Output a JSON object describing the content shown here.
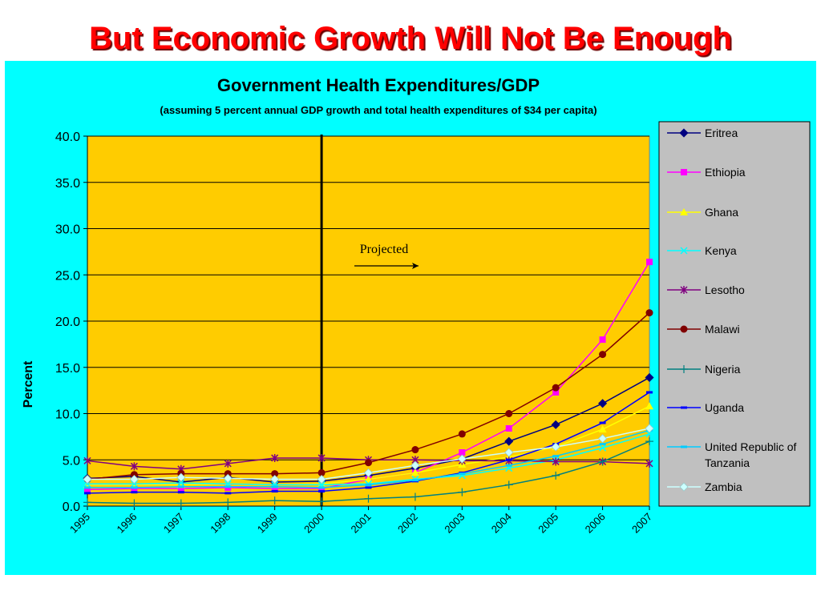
{
  "slide": {
    "title": "But Economic Growth Will Not Be Enough"
  },
  "chart_data": {
    "type": "line",
    "title": "Government Health Expenditures/GDP",
    "subtitle": "(assuming 5 percent annual GDP growth and total health expenditures of $34 per capita)",
    "ylabel": "Percent",
    "xlabel": "",
    "ylim": [
      0,
      40
    ],
    "yticks": [
      "0.0",
      "5.0",
      "10.0",
      "15.0",
      "20.0",
      "25.0",
      "30.0",
      "35.0",
      "40.0"
    ],
    "categories": [
      "1995",
      "1996",
      "1997",
      "1998",
      "1999",
      "2000",
      "2001",
      "2002",
      "2003",
      "2004",
      "2005",
      "2006",
      "2007"
    ],
    "grid": "horizontal",
    "legend_position": "right",
    "plot_background": "#ffcc00",
    "page_background": "#00ffff",
    "divider_at": "2000",
    "annotation": "Projected",
    "series": [
      {
        "name": "Eritrea",
        "color": "#000080",
        "marker": "diamond",
        "values": [
          3.0,
          3.2,
          2.6,
          3.1,
          2.6,
          2.7,
          3.3,
          4.1,
          5.1,
          7.0,
          8.8,
          11.1,
          13.9
        ]
      },
      {
        "name": "Ethiopia",
        "color": "#ff00ff",
        "marker": "square",
        "values": [
          1.8,
          1.9,
          1.9,
          2.0,
          1.9,
          1.9,
          2.9,
          3.6,
          5.8,
          8.4,
          12.3,
          18.0,
          26.4
        ]
      },
      {
        "name": "Ghana",
        "color": "#ffff00",
        "marker": "triangle",
        "values": [
          2.3,
          2.3,
          2.3,
          2.4,
          2.3,
          2.4,
          2.9,
          3.6,
          4.5,
          5.3,
          6.4,
          8.3,
          10.8
        ]
      },
      {
        "name": "Kenya",
        "color": "#00ffff",
        "marker": "x",
        "values": [
          2.4,
          2.4,
          2.5,
          2.4,
          2.3,
          2.3,
          2.4,
          2.9,
          3.3,
          4.1,
          5.0,
          6.3,
          7.8
        ]
      },
      {
        "name": "Lesotho",
        "color": "#800080",
        "marker": "star",
        "values": [
          4.9,
          4.3,
          4.0,
          4.6,
          5.2,
          5.2,
          5.0,
          5.0,
          4.9,
          4.9,
          4.8,
          4.8,
          4.6
        ]
      },
      {
        "name": "Malawi",
        "color": "#800000",
        "marker": "circle",
        "values": [
          2.9,
          3.4,
          3.5,
          3.5,
          3.5,
          3.6,
          4.7,
          6.1,
          7.8,
          10.0,
          12.8,
          16.4,
          20.9
        ]
      },
      {
        "name": "Nigeria",
        "color": "#008080",
        "marker": "plus",
        "values": [
          0.4,
          0.3,
          0.3,
          0.4,
          0.6,
          0.5,
          0.8,
          1.0,
          1.5,
          2.3,
          3.3,
          4.8,
          7.0
        ]
      },
      {
        "name": "Uganda",
        "color": "#0000ff",
        "marker": "dash",
        "values": [
          1.4,
          1.5,
          1.5,
          1.4,
          1.6,
          1.6,
          2.0,
          2.7,
          3.6,
          5.0,
          6.7,
          9.0,
          12.3
        ]
      },
      {
        "name": "United Republic of Tanzania",
        "color": "#00ccff",
        "marker": "dash",
        "values": [
          2.0,
          2.0,
          2.1,
          2.1,
          2.1,
          2.0,
          2.3,
          2.8,
          3.5,
          4.4,
          5.4,
          6.7,
          8.2
        ]
      },
      {
        "name": "Zambia",
        "color": "#ccffff",
        "marker": "diamond",
        "values": [
          2.9,
          2.9,
          3.1,
          3.0,
          2.9,
          2.9,
          3.6,
          4.4,
          5.1,
          5.8,
          6.4,
          7.3,
          8.4
        ]
      }
    ]
  }
}
